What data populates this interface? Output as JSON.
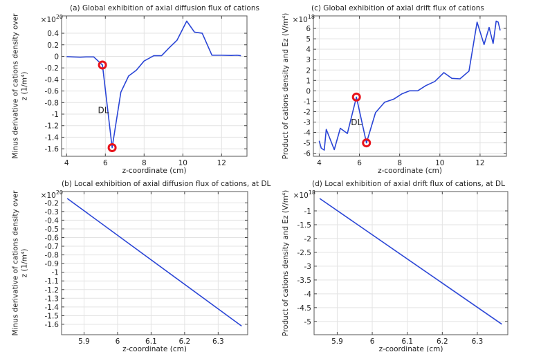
{
  "chart_data": [
    {
      "id": "a",
      "type": "line",
      "title": "(a) Global exhibition of axial diffusion flux of cations",
      "xlabel": "z-coordinate (cm)",
      "ylabel": [
        "Minus derivative of cations density over",
        "z (1/m⁴)"
      ],
      "y_multiplier": {
        "base": "×10",
        "exp": "20"
      },
      "xlim": [
        3.74,
        13.31
      ],
      "ylim": [
        -1.73,
        0.7
      ],
      "xticks": [
        4,
        6,
        8,
        10,
        12
      ],
      "yticks": [
        0.4,
        0.2,
        0,
        -0.2,
        -0.4,
        -0.6,
        -0.8,
        -1,
        -1.2,
        -1.4,
        -1.6
      ],
      "grid": true,
      "line_color": "#2a45d6",
      "series": [
        {
          "name": "diffusion",
          "x": [
            4.0,
            4.3,
            4.7,
            5.0,
            5.4,
            5.85,
            6.35,
            6.8,
            7.2,
            7.6,
            8.0,
            8.5,
            8.9,
            9.3,
            9.7,
            10.2,
            10.6,
            11.0,
            11.5,
            12.0,
            12.5,
            12.8,
            13.0
          ],
          "y": [
            -0.005,
            -0.01,
            -0.015,
            -0.01,
            -0.01,
            -0.15,
            -1.58,
            -0.62,
            -0.34,
            -0.24,
            -0.08,
            0.01,
            0.01,
            0.15,
            0.28,
            0.61,
            0.42,
            0.4,
            0.02,
            0.02,
            0.015,
            0.02,
            0.01
          ]
        }
      ],
      "markers": [
        {
          "x": 5.85,
          "y": -0.15
        },
        {
          "x": 6.35,
          "y": -1.58
        }
      ],
      "annotation": {
        "text": "DL",
        "x": 5.9,
        "y": -0.98
      }
    },
    {
      "id": "c",
      "type": "line",
      "title": "(c) Global exhibition of axial drift flux of cations",
      "xlabel": "z-coordinate (cm)",
      "ylabel": [
        "Product of cations density and Ez (V/m⁴)"
      ],
      "y_multiplier": {
        "base": "×10",
        "exp": "18"
      },
      "xlim": [
        3.71,
        13.31
      ],
      "ylim": [
        -6.29,
        7.2
      ],
      "xticks": [
        4,
        6,
        8,
        10,
        12
      ],
      "yticks": [
        6,
        5,
        4,
        3,
        2,
        1,
        0,
        -1,
        -2,
        -3,
        -4,
        -5,
        -6
      ],
      "grid": true,
      "line_color": "#2a45d6",
      "series": [
        {
          "name": "drift",
          "x": [
            4.0,
            4.1,
            4.25,
            4.35,
            4.75,
            5.05,
            5.4,
            5.85,
            6.35,
            6.8,
            7.25,
            7.7,
            8.1,
            8.5,
            8.9,
            9.3,
            9.75,
            10.2,
            10.6,
            11.0,
            11.45,
            11.85,
            12.2,
            12.45,
            12.65,
            12.8,
            12.9,
            13.0
          ],
          "y": [
            -4.8,
            -5.5,
            -5.7,
            -3.7,
            -5.65,
            -3.6,
            -4.1,
            -0.6,
            -5.0,
            -2.1,
            -1.1,
            -0.8,
            -0.3,
            0,
            0,
            0.5,
            0.9,
            1.75,
            1.2,
            1.15,
            1.9,
            6.6,
            4.45,
            6.1,
            4.55,
            6.7,
            6.6,
            5.8
          ]
        }
      ],
      "markers": [
        {
          "x": 5.85,
          "y": -0.6
        },
        {
          "x": 6.35,
          "y": -5.0
        }
      ],
      "annotation": {
        "text": "DL",
        "x": 5.85,
        "y": -3.3
      }
    },
    {
      "id": "b",
      "type": "line",
      "title": "(b) Local exhibition of axial diffusion flux of cations, at DL",
      "xlabel": "z-coordinate (cm)",
      "ylabel": [
        "Minus derivative of cations density over",
        "z (1/m⁴)"
      ],
      "y_multiplier": {
        "base": "×10",
        "exp": "20"
      },
      "xlim": [
        5.833,
        6.388
      ],
      "ylim": [
        -1.72,
        -0.07
      ],
      "xticks": [
        5.9,
        6,
        6.1,
        6.2,
        6.3
      ],
      "yticks": [
        -0.2,
        -0.3,
        -0.4,
        -0.5,
        -0.6,
        -0.7,
        -0.8,
        -0.9,
        -1,
        -1.1,
        -1.2,
        -1.3,
        -1.4,
        -1.5,
        -1.6
      ],
      "grid": true,
      "line_color": "#2a45d6",
      "series": [
        {
          "name": "diffusion at DL",
          "x": [
            5.85,
            6.37
          ],
          "y": [
            -0.15,
            -1.62
          ]
        }
      ],
      "markers": [],
      "annotation": null
    },
    {
      "id": "d",
      "type": "line",
      "title": "(d) Local exhibition of axial drift flux of cations, at DL",
      "xlabel": "z-coordinate (cm)",
      "ylabel": [
        "Product of cations density and Ez (V/m⁴)"
      ],
      "y_multiplier": {
        "base": "×10",
        "exp": "18"
      },
      "xlim": [
        5.834,
        6.387
      ],
      "ylim": [
        -5.48,
        -0.3
      ],
      "xticks": [
        5.9,
        6,
        6.1,
        6.2,
        6.3
      ],
      "yticks": [
        -1,
        -1.5,
        -2,
        -2.5,
        -3,
        -3.5,
        -4,
        -4.5,
        -5
      ],
      "grid": true,
      "line_color": "#2a45d6",
      "series": [
        {
          "name": "drift at DL",
          "x": [
            5.85,
            6.37
          ],
          "y": [
            -0.55,
            -5.1
          ]
        }
      ],
      "markers": [],
      "annotation": null
    }
  ]
}
